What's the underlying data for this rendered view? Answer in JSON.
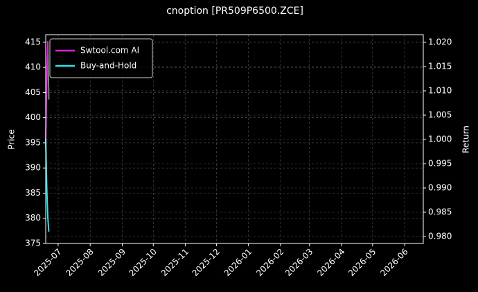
{
  "chart_data": {
    "type": "line",
    "title": "cnoption [PR509P6500.ZCE]",
    "ylabel": "Price",
    "y2label": "Return",
    "xlim": [
      "2025-06-19",
      "2026-06-19"
    ],
    "xticks": [
      {
        "value": "2025-07-01",
        "label": "2025-07"
      },
      {
        "value": "2025-08-01",
        "label": "2025-08"
      },
      {
        "value": "2025-09-01",
        "label": "2025-09"
      },
      {
        "value": "2025-10-01",
        "label": "2025-10"
      },
      {
        "value": "2025-11-01",
        "label": "2025-11"
      },
      {
        "value": "2025-12-01",
        "label": "2025-12"
      },
      {
        "value": "2026-01-01",
        "label": "2026-01"
      },
      {
        "value": "2026-02-01",
        "label": "2026-02"
      },
      {
        "value": "2026-03-01",
        "label": "2026-03"
      },
      {
        "value": "2026-04-01",
        "label": "2026-04"
      },
      {
        "value": "2026-05-01",
        "label": "2026-05"
      },
      {
        "value": "2026-06-01",
        "label": "2026-06"
      }
    ],
    "ylim": [
      375,
      416.5
    ],
    "yticks": [
      375,
      380,
      385,
      390,
      395,
      400,
      405,
      410,
      415
    ],
    "y2lim": [
      0.97857,
      1.02157
    ],
    "y2ticks": [
      {
        "value": 0.98,
        "label": "0.980"
      },
      0.985,
      {
        "value": 0.99,
        "label": "0.990"
      },
      0.995,
      {
        "value": 1,
        "label": "1.000"
      },
      1.005,
      {
        "value": 1.01,
        "label": "1.010"
      },
      1.015,
      {
        "value": 1.02,
        "label": "1.020"
      }
    ],
    "grid": true,
    "legend": "upper-left",
    "series": [
      {
        "color": "#808080",
        "axis": "y",
        "x": [
          "2025-06-21",
          "2025-06-22"
        ],
        "values": [
          415.2,
          403.6
        ]
      },
      {
        "name": "Swtool.com AI",
        "color": "#e020e0",
        "axis": "y2",
        "x": [
          "2025-06-19",
          "2025-06-20",
          "2025-06-21"
        ],
        "values": [
          1.0,
          1.012,
          1.02
        ]
      },
      {
        "name": "Buy-and-Hold",
        "color": "#30e0e8",
        "axis": "y2",
        "x": [
          "2025-06-19",
          "2025-06-20",
          "2025-06-21",
          "2025-06-22"
        ],
        "values": [
          1.0,
          0.99,
          0.984,
          0.981
        ]
      }
    ]
  }
}
